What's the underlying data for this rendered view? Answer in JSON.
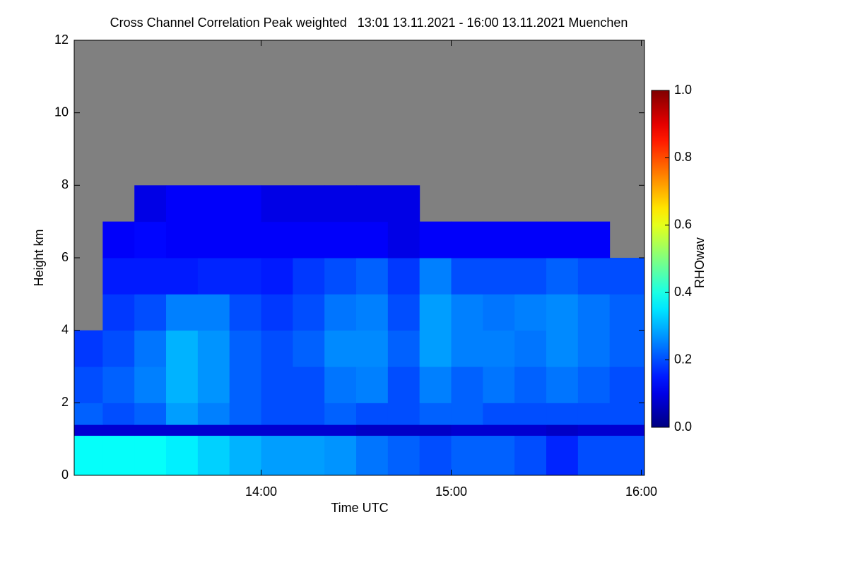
{
  "chart_data": {
    "type": "heatmap",
    "title": "Cross Channel Correlation Peak weighted   13:01 13.11.2021 - 16:00 13.11.2021 Muenchen",
    "xlabel": "Time UTC",
    "ylabel": "Height km",
    "zlabel": "RHOwav",
    "colormap": "jet",
    "nan_color": "#808080",
    "xlim": [
      781,
      961
    ],
    "xticks": [
      {
        "value": 840,
        "label": "14:00"
      },
      {
        "value": 900,
        "label": "15:00"
      },
      {
        "value": 960,
        "label": "16:00"
      }
    ],
    "ylim": [
      0,
      12
    ],
    "yticks": [
      0,
      2,
      4,
      6,
      8,
      10,
      12
    ],
    "zlim": [
      0,
      1
    ],
    "zticks": [
      {
        "value": 0,
        "label": "0.0"
      },
      0.2,
      0.4,
      0.6,
      0.8,
      {
        "value": 1,
        "label": "1.0"
      }
    ],
    "xbins": [
      781,
      790,
      800,
      810,
      820,
      830,
      840,
      850,
      860,
      870,
      880,
      890,
      900,
      910,
      920,
      930,
      940,
      950,
      961
    ],
    "ybins": [
      0,
      1.1,
      1.4,
      2,
      3,
      4,
      5,
      6,
      7,
      8,
      12
    ],
    "z": [
      [
        0.38,
        0.38,
        0.38,
        0.36,
        0.33,
        0.3,
        0.28,
        0.28,
        0.27,
        0.24,
        0.22,
        0.2,
        0.22,
        0.22,
        0.2,
        0.16,
        0.2,
        0.2
      ],
      [
        0.08,
        0.08,
        0.08,
        0.08,
        0.08,
        0.08,
        0.08,
        0.08,
        0.08,
        0.07,
        0.07,
        0.07,
        0.08,
        0.08,
        0.08,
        0.07,
        0.08,
        0.08
      ],
      [
        0.22,
        0.2,
        0.22,
        0.28,
        0.25,
        0.22,
        0.2,
        0.2,
        0.22,
        0.2,
        0.2,
        0.22,
        0.22,
        0.2,
        0.2,
        0.2,
        0.2,
        0.2
      ],
      [
        0.2,
        0.22,
        0.25,
        0.3,
        0.27,
        0.22,
        0.2,
        0.2,
        0.24,
        0.25,
        0.2,
        0.25,
        0.22,
        0.24,
        0.22,
        0.24,
        0.22,
        0.2
      ],
      [
        0.18,
        0.2,
        0.24,
        0.3,
        0.27,
        0.22,
        0.2,
        0.22,
        0.26,
        0.26,
        0.22,
        0.28,
        0.25,
        0.25,
        0.24,
        0.26,
        0.24,
        0.22
      ],
      [
        null,
        0.18,
        0.2,
        0.25,
        0.25,
        0.2,
        0.18,
        0.2,
        0.24,
        0.25,
        0.2,
        0.28,
        0.25,
        0.24,
        0.25,
        0.26,
        0.24,
        0.22
      ],
      [
        null,
        0.15,
        0.15,
        0.15,
        0.16,
        0.16,
        0.15,
        0.18,
        0.2,
        0.22,
        0.18,
        0.25,
        0.2,
        0.2,
        0.2,
        0.22,
        0.2,
        0.2
      ],
      [
        null,
        0.12,
        0.13,
        0.12,
        0.12,
        0.12,
        0.12,
        0.12,
        0.12,
        0.12,
        0.1,
        0.12,
        0.12,
        0.12,
        0.12,
        0.12,
        0.12,
        null
      ],
      [
        null,
        null,
        0.1,
        0.12,
        0.12,
        0.12,
        0.1,
        0.1,
        0.1,
        0.1,
        0.1,
        null,
        null,
        null,
        null,
        null,
        null,
        null
      ],
      [
        null,
        null,
        null,
        null,
        null,
        null,
        null,
        null,
        null,
        null,
        null,
        null,
        null,
        null,
        null,
        null,
        null,
        null
      ]
    ]
  }
}
